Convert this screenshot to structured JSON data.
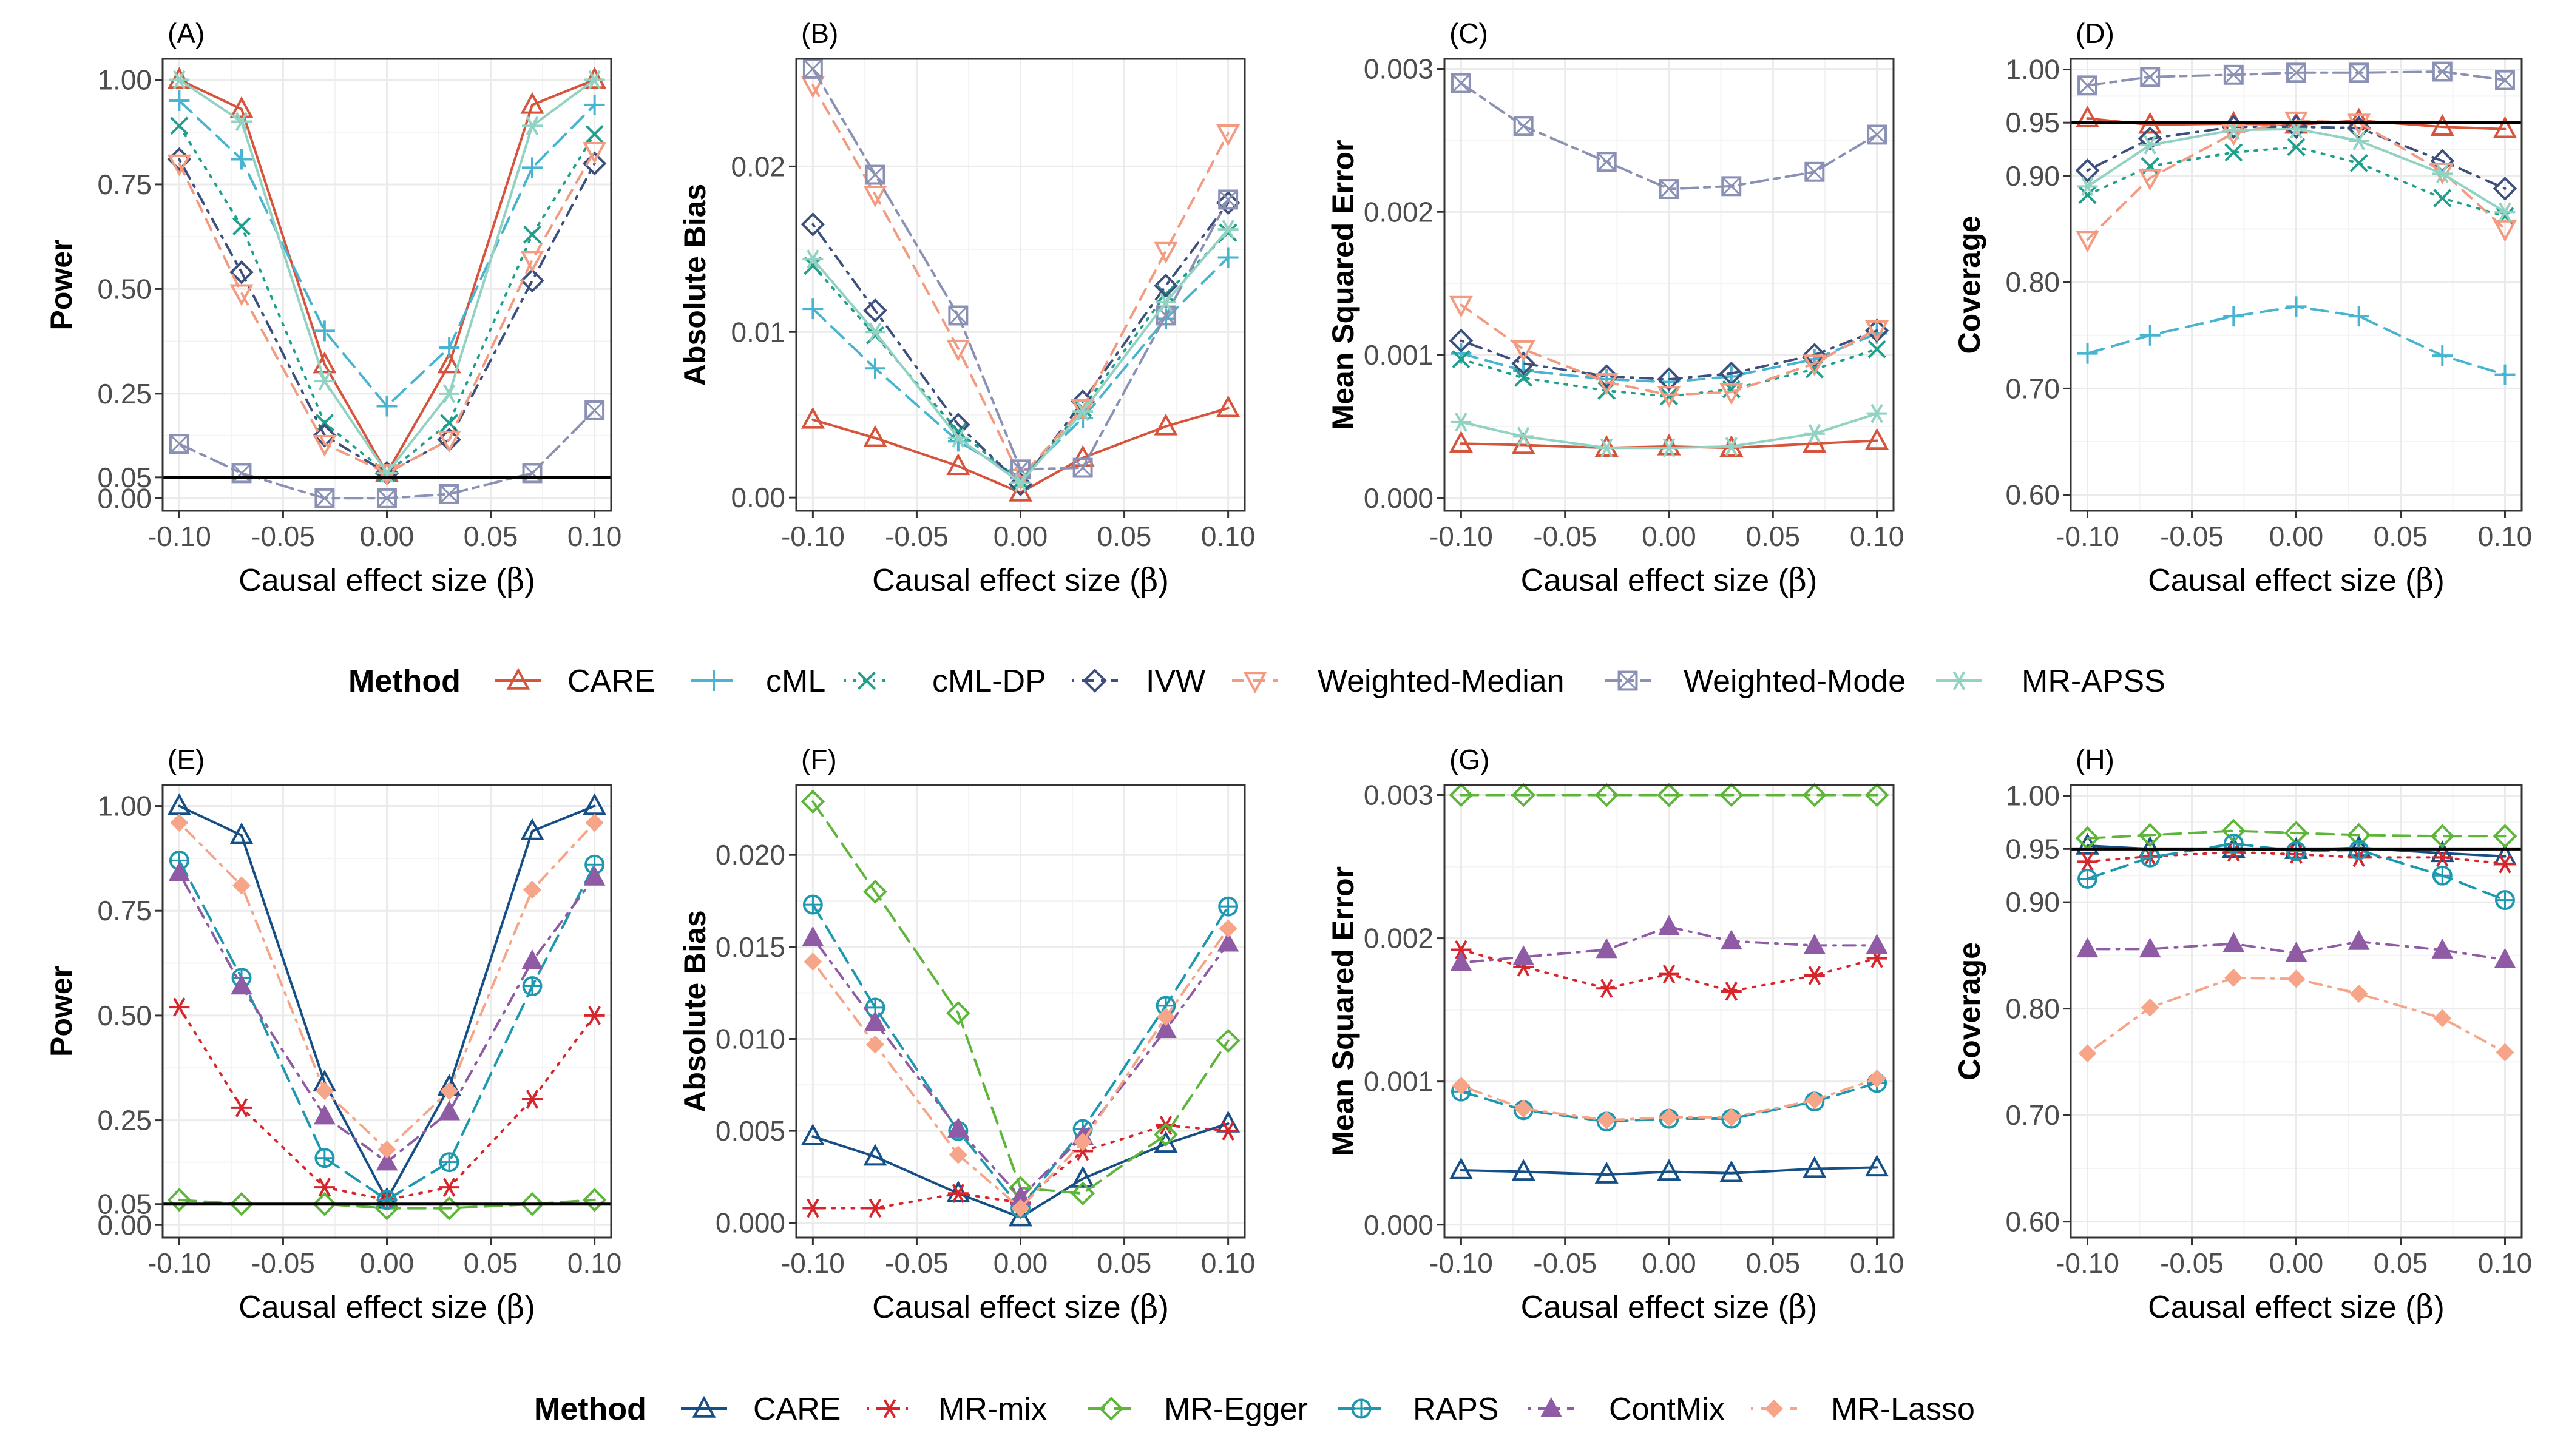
{
  "figure": {
    "x_label_main": "Causal effect size (",
    "x_label_symbol": "β",
    "x_label_close": ")",
    "x_ticks": [
      "-0.10",
      "-0.05",
      "0.00",
      "0.05",
      "0.10"
    ],
    "x_values": [
      -0.1,
      -0.07,
      -0.03,
      0,
      0.03,
      0.07,
      0.1
    ]
  },
  "legends": [
    {
      "title": "Method",
      "items": [
        {
          "label": "CARE",
          "color": "#d7543c",
          "shape": "triangle-open",
          "dash": "solid"
        },
        {
          "label": "cML",
          "color": "#48b4d0",
          "shape": "plus",
          "dash": "longdash"
        },
        {
          "label": "cML-DP",
          "color": "#1fa08c",
          "shape": "x",
          "dash": "dotted"
        },
        {
          "label": "IVW",
          "color": "#3d4f7c",
          "shape": "diamond-open",
          "dash": "dotdash"
        },
        {
          "label": "Weighted-Median",
          "color": "#f29b80",
          "shape": "triangle-down-open",
          "dash": "dashed"
        },
        {
          "label": "Weighted-Mode",
          "color": "#8a91b4",
          "shape": "square-x",
          "dash": "twodash"
        },
        {
          "label": "MR-APSS",
          "color": "#92d2c3",
          "shape": "asterisk",
          "dash": "solid"
        }
      ]
    },
    {
      "title": "Method",
      "items": [
        {
          "label": "CARE",
          "color": "#164f86",
          "shape": "triangle-open",
          "dash": "solid"
        },
        {
          "label": "MR-mix",
          "color": "#d7262b",
          "shape": "asterisk",
          "dash": "dotted"
        },
        {
          "label": "MR-Egger",
          "color": "#5db53a",
          "shape": "diamond-open",
          "dash": "longdash"
        },
        {
          "label": "RAPS",
          "color": "#1e98b0",
          "shape": "circle-plus",
          "dash": "longdash"
        },
        {
          "label": "ContMix",
          "color": "#8e5ba4",
          "shape": "triangle-filled",
          "dash": "dotdash"
        },
        {
          "label": "MR-Lasso",
          "color": "#f7a588",
          "shape": "diamond-filled",
          "dash": "dotdash"
        }
      ]
    }
  ],
  "chart_data": [
    {
      "type": "line",
      "tag": "(A)",
      "ylabel": "Power",
      "ylim": [
        -0.03,
        1.05
      ],
      "y_ticks": [
        0.0,
        0.05,
        0.25,
        0.5,
        0.75,
        1.0
      ],
      "y_tick_labels": [
        "0.00",
        "0.05",
        "0.25",
        "0.50",
        "0.75",
        "1.00"
      ],
      "hline": 0.05,
      "hline_color": "#000000",
      "series": [
        {
          "name": "CARE",
          "values": [
            1.0,
            0.93,
            0.32,
            0.06,
            0.32,
            0.94,
            1.0
          ]
        },
        {
          "name": "cML",
          "values": [
            0.95,
            0.81,
            0.4,
            0.22,
            0.36,
            0.79,
            0.94
          ]
        },
        {
          "name": "cML-DP",
          "values": [
            0.89,
            0.65,
            0.18,
            0.06,
            0.18,
            0.63,
            0.87
          ]
        },
        {
          "name": "IVW",
          "values": [
            0.81,
            0.54,
            0.15,
            0.06,
            0.14,
            0.52,
            0.8
          ]
        },
        {
          "name": "Weighted-Median",
          "values": [
            0.8,
            0.49,
            0.13,
            0.06,
            0.14,
            0.57,
            0.83
          ]
        },
        {
          "name": "Weighted-Mode",
          "values": [
            0.13,
            0.06,
            0.0,
            0.0,
            0.01,
            0.06,
            0.21
          ]
        },
        {
          "name": "MR-APSS",
          "values": [
            1.0,
            0.9,
            0.28,
            0.06,
            0.25,
            0.89,
            1.0
          ]
        }
      ]
    },
    {
      "type": "line",
      "tag": "(B)",
      "ylabel": "Absolute Bias",
      "ylim": [
        -0.0008,
        0.0265
      ],
      "y_ticks": [
        0.0,
        0.01,
        0.02
      ],
      "y_tick_labels": [
        "0.00",
        "0.01",
        "0.02"
      ],
      "series": [
        {
          "name": "CARE",
          "values": [
            0.0047,
            0.0036,
            0.0019,
            0.0003,
            0.0024,
            0.0043,
            0.0054
          ]
        },
        {
          "name": "cML",
          "values": [
            0.0114,
            0.0078,
            0.0034,
            0.0012,
            0.0048,
            0.0108,
            0.0145
          ]
        },
        {
          "name": "cML-DP",
          "values": [
            0.014,
            0.0098,
            0.004,
            0.001,
            0.0054,
            0.0123,
            0.016
          ]
        },
        {
          "name": "IVW",
          "values": [
            0.0165,
            0.0113,
            0.0044,
            0.0008,
            0.0058,
            0.0128,
            0.0178
          ]
        },
        {
          "name": "Weighted-Median",
          "values": [
            0.0249,
            0.0183,
            0.009,
            0.0012,
            0.0054,
            0.0149,
            0.022
          ]
        },
        {
          "name": "Weighted-Mode",
          "values": [
            0.0259,
            0.0195,
            0.011,
            0.0017,
            0.0018,
            0.011,
            0.018
          ]
        },
        {
          "name": "MR-APSS",
          "values": [
            0.0144,
            0.01,
            0.0036,
            0.0009,
            0.0052,
            0.0118,
            0.0162
          ]
        }
      ]
    },
    {
      "type": "line",
      "tag": "(C)",
      "ylabel": "Mean Squared Error",
      "ylim": [
        -9e-05,
        0.00307
      ],
      "y_ticks": [
        0.0,
        0.001,
        0.002,
        0.003
      ],
      "y_tick_labels": [
        "0.000",
        "0.001",
        "0.002",
        "0.003"
      ],
      "series": [
        {
          "name": "CARE",
          "values": [
            0.00038,
            0.00037,
            0.00035,
            0.00036,
            0.00035,
            0.00038,
            0.0004
          ]
        },
        {
          "name": "cML",
          "values": [
            0.00101,
            0.00089,
            0.00083,
            0.00081,
            0.00085,
            0.00097,
            0.00115
          ]
        },
        {
          "name": "cML-DP",
          "values": [
            0.00097,
            0.00084,
            0.00075,
            0.00071,
            0.00076,
            0.0009,
            0.00104
          ]
        },
        {
          "name": "IVW",
          "values": [
            0.0011,
            0.00094,
            0.00085,
            0.00083,
            0.00087,
            0.001,
            0.00117
          ]
        },
        {
          "name": "Weighted-Median",
          "values": [
            0.00135,
            0.00104,
            0.00081,
            0.00072,
            0.00074,
            0.00094,
            0.00118
          ]
        },
        {
          "name": "Weighted-Mode",
          "values": [
            0.0029,
            0.0026,
            0.00235,
            0.00216,
            0.00218,
            0.00228,
            0.00254
          ]
        },
        {
          "name": "MR-APSS",
          "values": [
            0.00053,
            0.00043,
            0.00035,
            0.00035,
            0.00036,
            0.00045,
            0.00059
          ]
        }
      ]
    },
    {
      "type": "line",
      "tag": "(D)",
      "ylabel": "Coverage",
      "ylim": [
        0.585,
        1.01
      ],
      "y_ticks": [
        0.6,
        0.7,
        0.8,
        0.9,
        0.95,
        1.0
      ],
      "y_tick_labels": [
        "0.60",
        "0.70",
        "0.80",
        "0.90",
        "0.95",
        "1.00"
      ],
      "hline": 0.95,
      "hline_color": "#000000",
      "series": [
        {
          "name": "CARE",
          "values": [
            0.954,
            0.948,
            0.949,
            0.948,
            0.952,
            0.946,
            0.944
          ]
        },
        {
          "name": "cML",
          "values": [
            0.733,
            0.75,
            0.768,
            0.777,
            0.768,
            0.731,
            0.713
          ]
        },
        {
          "name": "cML-DP",
          "values": [
            0.882,
            0.909,
            0.922,
            0.927,
            0.912,
            0.879,
            0.862
          ]
        },
        {
          "name": "IVW",
          "values": [
            0.905,
            0.935,
            0.946,
            0.946,
            0.945,
            0.914,
            0.888
          ]
        },
        {
          "name": "Weighted-Median",
          "values": [
            0.84,
            0.898,
            0.94,
            0.952,
            0.95,
            0.904,
            0.85
          ]
        },
        {
          "name": "Weighted-Mode",
          "values": [
            0.985,
            0.993,
            0.995,
            0.997,
            0.997,
            0.998,
            0.99
          ]
        },
        {
          "name": "MR-APSS",
          "values": [
            0.89,
            0.929,
            0.943,
            0.944,
            0.933,
            0.902,
            0.866
          ]
        }
      ]
    },
    {
      "type": "line",
      "tag": "(E)",
      "ylabel": "Power",
      "ylim": [
        -0.03,
        1.05
      ],
      "y_ticks": [
        0.0,
        0.05,
        0.25,
        0.5,
        0.75,
        1.0
      ],
      "y_tick_labels": [
        "0.00",
        "0.05",
        "0.25",
        "0.50",
        "0.75",
        "1.00"
      ],
      "hline": 0.05,
      "hline_color": "#000000",
      "series": [
        {
          "name": "CARE",
          "values": [
            1.0,
            0.93,
            0.34,
            0.06,
            0.33,
            0.94,
            1.0
          ]
        },
        {
          "name": "MR-mix",
          "values": [
            0.52,
            0.28,
            0.09,
            0.06,
            0.09,
            0.3,
            0.5
          ]
        },
        {
          "name": "MR-Egger",
          "values": [
            0.06,
            0.05,
            0.05,
            0.04,
            0.04,
            0.05,
            0.06
          ]
        },
        {
          "name": "RAPS",
          "values": [
            0.87,
            0.59,
            0.16,
            0.06,
            0.15,
            0.57,
            0.86
          ]
        },
        {
          "name": "ContMix",
          "values": [
            0.84,
            0.57,
            0.26,
            0.15,
            0.27,
            0.63,
            0.83
          ]
        },
        {
          "name": "MR-Lasso",
          "values": [
            0.96,
            0.81,
            0.32,
            0.18,
            0.32,
            0.8,
            0.96
          ]
        }
      ]
    },
    {
      "type": "line",
      "tag": "(F)",
      "ylabel": "Absolute Bias",
      "ylim": [
        -0.0008,
        0.0238
      ],
      "y_ticks": [
        0.0,
        0.005,
        0.01,
        0.015,
        0.02
      ],
      "y_tick_labels": [
        "0.000",
        "0.005",
        "0.010",
        "0.015",
        "0.020"
      ],
      "series": [
        {
          "name": "CARE",
          "values": [
            0.0047,
            0.0036,
            0.0016,
            0.0003,
            0.0024,
            0.0043,
            0.0054
          ]
        },
        {
          "name": "MR-mix",
          "values": [
            0.0008,
            0.0008,
            0.0016,
            0.0011,
            0.0039,
            0.0053,
            0.005
          ]
        },
        {
          "name": "MR-Egger",
          "values": [
            0.0229,
            0.018,
            0.0114,
            0.0019,
            0.0016,
            0.0048,
            0.0099
          ]
        },
        {
          "name": "RAPS",
          "values": [
            0.0173,
            0.0117,
            0.005,
            0.0008,
            0.0051,
            0.0118,
            0.0172
          ]
        },
        {
          "name": "ContMix",
          "values": [
            0.0155,
            0.0109,
            0.0051,
            0.0014,
            0.0047,
            0.0105,
            0.0152
          ]
        },
        {
          "name": "MR-Lasso",
          "values": [
            0.0142,
            0.0097,
            0.0037,
            0.0008,
            0.0044,
            0.0112,
            0.016
          ]
        }
      ]
    },
    {
      "type": "line",
      "tag": "(G)",
      "ylabel": "Mean Squared Error",
      "ylim": [
        -9e-05,
        0.00307
      ],
      "y_ticks": [
        0.0,
        0.001,
        0.002,
        0.003
      ],
      "y_tick_labels": [
        "0.000",
        "0.001",
        "0.002",
        "0.003"
      ],
      "series": [
        {
          "name": "CARE",
          "values": [
            0.00038,
            0.00037,
            0.00035,
            0.00037,
            0.00036,
            0.00039,
            0.0004
          ]
        },
        {
          "name": "MR-mix",
          "values": [
            0.00192,
            0.0018,
            0.00165,
            0.00175,
            0.00163,
            0.00174,
            0.00186
          ]
        },
        {
          "name": "MR-Egger",
          "values": [
            0.003,
            0.003,
            0.003,
            0.003,
            0.003,
            0.003,
            0.003
          ]
        },
        {
          "name": "RAPS",
          "values": [
            0.00093,
            0.0008,
            0.00072,
            0.00074,
            0.00074,
            0.00086,
            0.00099
          ]
        },
        {
          "name": "ContMix",
          "values": [
            0.00183,
            0.00187,
            0.00192,
            0.00208,
            0.00198,
            0.00195,
            0.00195
          ]
        },
        {
          "name": "MR-Lasso",
          "values": [
            0.00097,
            0.00081,
            0.00073,
            0.00075,
            0.00075,
            0.00087,
            0.00102
          ]
        }
      ]
    },
    {
      "type": "line",
      "tag": "(H)",
      "ylabel": "Coverage",
      "ylim": [
        0.585,
        1.01
      ],
      "y_ticks": [
        0.6,
        0.7,
        0.8,
        0.9,
        0.95,
        1.0
      ],
      "y_tick_labels": [
        "0.60",
        "0.70",
        "0.80",
        "0.90",
        "0.95",
        "1.00"
      ],
      "hline": 0.95,
      "hline_color": "#000000",
      "series": [
        {
          "name": "CARE",
          "values": [
            0.953,
            0.95,
            0.95,
            0.949,
            0.951,
            0.946,
            0.943
          ]
        },
        {
          "name": "MR-mix",
          "values": [
            0.938,
            0.943,
            0.947,
            0.945,
            0.942,
            0.942,
            0.936
          ]
        },
        {
          "name": "MR-Egger",
          "values": [
            0.96,
            0.963,
            0.967,
            0.965,
            0.963,
            0.962,
            0.962
          ]
        },
        {
          "name": "RAPS",
          "values": [
            0.922,
            0.942,
            0.955,
            0.948,
            0.949,
            0.925,
            0.902
          ]
        },
        {
          "name": "ContMix",
          "values": [
            0.856,
            0.856,
            0.861,
            0.852,
            0.863,
            0.855,
            0.846
          ]
        },
        {
          "name": "MR-Lasso",
          "values": [
            0.758,
            0.801,
            0.829,
            0.828,
            0.814,
            0.791,
            0.759
          ]
        }
      ]
    }
  ]
}
